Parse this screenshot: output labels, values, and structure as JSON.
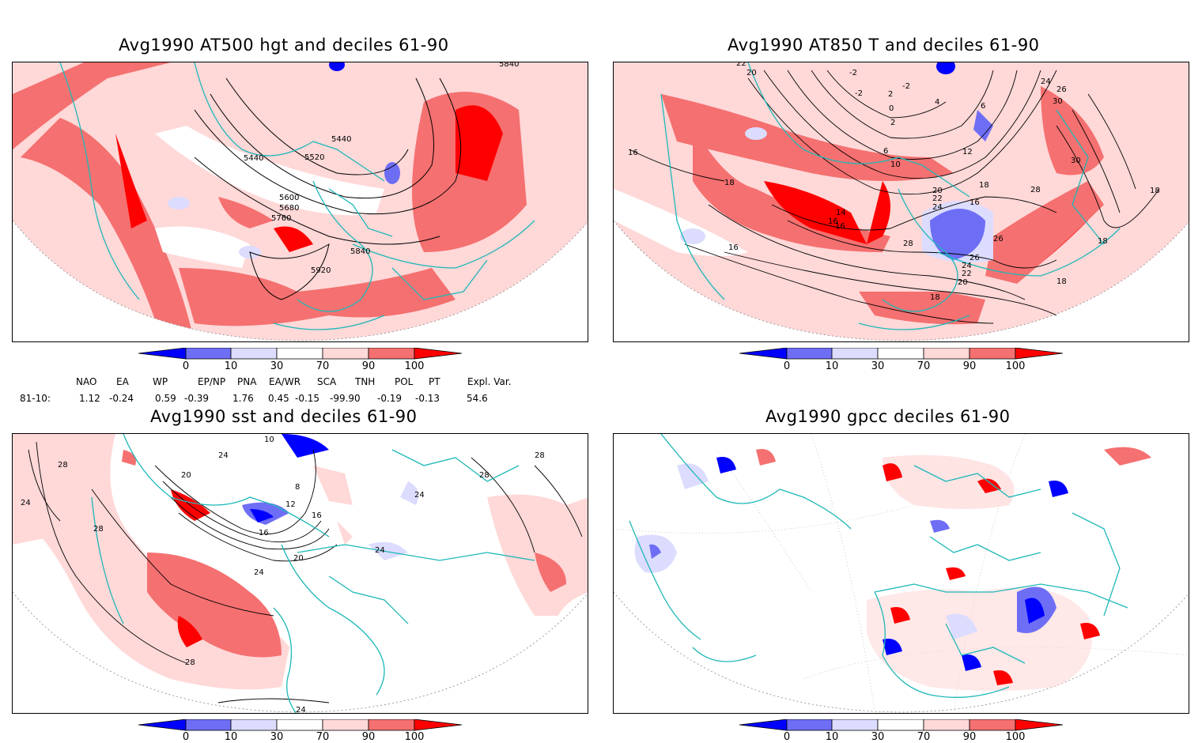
{
  "panels": {
    "top_left": {
      "title": "Avg1990 AT500 hgt and deciles 61-90"
    },
    "top_right": {
      "title": "Avg1990 AT850 T and deciles 61-90"
    },
    "bottom_left": {
      "title": "Avg1990 sst and deciles 61-90"
    },
    "bottom_right": {
      "title": "Avg1990 gpcc deciles 61-90"
    }
  },
  "colorbar": {
    "labels": [
      "0",
      "10",
      "30",
      "70",
      "90",
      "100"
    ],
    "colors": [
      "#0000ff",
      "#6e6ef5",
      "#dcdcff",
      "#ffffff",
      "#ffd8d8",
      "#f57070",
      "#ff0000"
    ]
  },
  "indices": {
    "headers": [
      "NAO",
      "EA",
      "WP",
      "EP/NP",
      "PNA",
      "EA/WR",
      "SCA",
      "TNH",
      "POL",
      "PT",
      "Expl. Var."
    ],
    "row_label": "81-10:",
    "values": [
      "1.12",
      "-0.24",
      "0.59",
      "-0.39",
      "1.76",
      "0.45",
      "-0.15",
      "-99.90",
      "-0.19",
      "-0.13",
      "54.6"
    ]
  },
  "contour_labels": {
    "top_left": [
      "5440",
      "5440",
      "5520",
      "5600",
      "5680",
      "5760",
      "5840",
      "5920",
      "5840"
    ],
    "top_right": [
      "22",
      "20",
      "-2",
      "-2",
      "-2",
      "2",
      "0",
      "4",
      "6",
      "2",
      "6",
      "10",
      "12",
      "16",
      "18",
      "14",
      "16",
      "16",
      "18",
      "16",
      "20",
      "22",
      "24",
      "26",
      "24",
      "26",
      "28",
      "30",
      "30",
      "28",
      "24",
      "26",
      "22",
      "20",
      "18",
      "18",
      "16",
      "18",
      "18"
    ],
    "bottom_left": [
      "10",
      "28",
      "24",
      "28",
      "20",
      "24",
      "12",
      "8",
      "16",
      "16",
      "24",
      "20",
      "24",
      "28",
      "28",
      "24",
      "28",
      "24"
    ]
  }
}
